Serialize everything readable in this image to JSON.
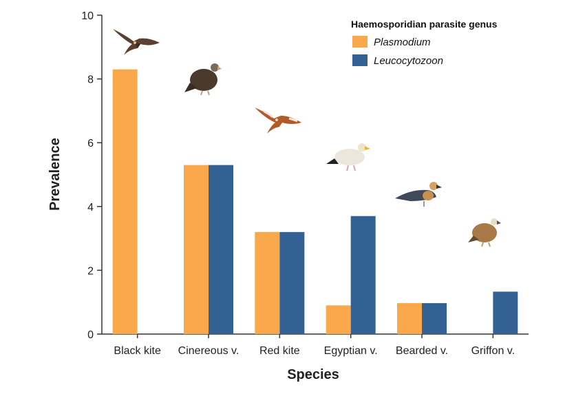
{
  "chart_data": {
    "type": "bar",
    "title": "",
    "xlabel": "Species",
    "ylabel": "Prevalence",
    "ylim": [
      0,
      10
    ],
    "yticks": [
      0,
      2,
      4,
      6,
      8,
      10
    ],
    "grid": false,
    "legend": {
      "title": "Haemosporidian parasite genus",
      "placement": "top-right"
    },
    "categories": [
      "Black kite",
      "Cinereous v.",
      "Red kite",
      "Egyptian v.",
      "Bearded v.",
      "Griffon v."
    ],
    "series": [
      {
        "name": "Plasmodium",
        "color": "#F9A94B",
        "values": [
          8.3,
          5.3,
          3.2,
          0.9,
          0.97,
          0
        ]
      },
      {
        "name": "Leucocytozoon",
        "color": "#336194",
        "values": [
          0,
          5.3,
          3.2,
          3.7,
          0.97,
          1.33
        ]
      }
    ],
    "bird_icons": [
      "black-kite-bird-icon",
      "cinereous-vulture-bird-icon",
      "red-kite-bird-icon",
      "egyptian-vulture-bird-icon",
      "bearded-vulture-bird-icon",
      "griffon-vulture-bird-icon"
    ]
  }
}
